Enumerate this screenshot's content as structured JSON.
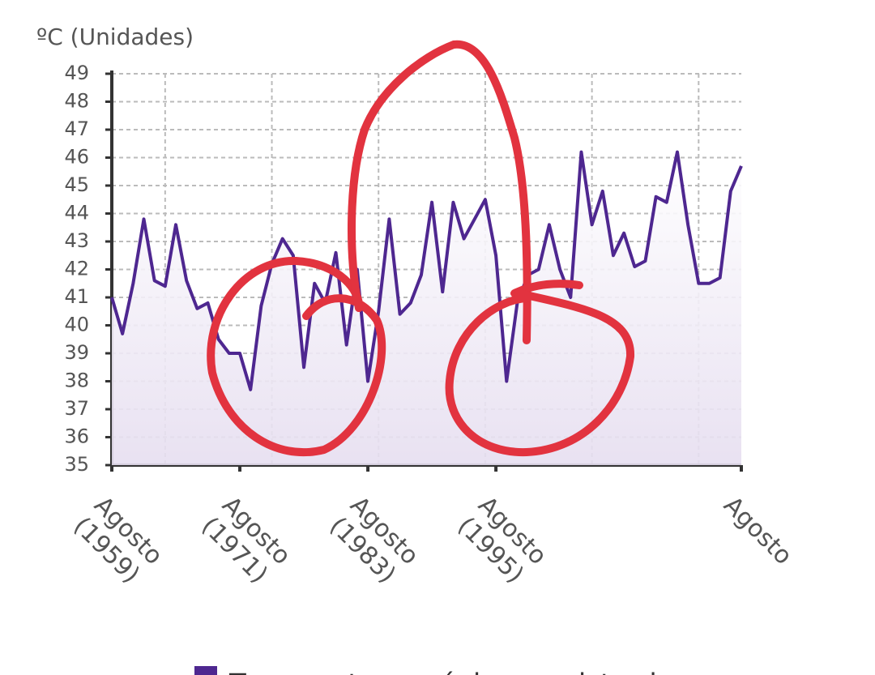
{
  "chart_data": {
    "type": "line",
    "y_label": "ºC (Unidades)",
    "categories": [
      "Agosto\n(1959)",
      null,
      null,
      null,
      null,
      null,
      null,
      null,
      null,
      null,
      null,
      null,
      "Agosto\n(1971)",
      null,
      null,
      null,
      null,
      null,
      null,
      null,
      null,
      null,
      null,
      null,
      "Agosto\n(1983)",
      null,
      null,
      null,
      null,
      null,
      null,
      null,
      null,
      null,
      null,
      null,
      "Agosto\n(1995)",
      null,
      null,
      null,
      null,
      null,
      null,
      null,
      null,
      null,
      null,
      null,
      null,
      null,
      null,
      null,
      null,
      null,
      null,
      null,
      null,
      null,
      null,
      "Agosto"
    ],
    "series": [
      {
        "name": "Temperatura máxima registrada",
        "color": "#4e2790",
        "values": [
          41.0,
          39.7,
          41.5,
          43.8,
          41.6,
          41.4,
          43.6,
          41.6,
          40.6,
          40.8,
          39.5,
          39.0,
          39.0,
          37.7,
          40.7,
          42.2,
          43.1,
          42.5,
          38.5,
          41.5,
          40.8,
          42.6,
          39.3,
          42.0,
          38.0,
          40.5,
          43.8,
          40.4,
          40.8,
          41.8,
          44.4,
          41.2,
          44.4,
          43.1,
          43.8,
          44.5,
          42.5,
          38.0,
          40.8,
          41.8,
          42.0,
          43.6,
          42.0,
          41.0,
          46.2,
          43.6,
          44.8,
          42.5,
          43.3,
          42.1,
          42.3,
          44.6,
          44.4,
          46.2,
          43.6,
          41.5,
          41.5,
          41.7,
          44.8,
          45.7
        ]
      }
    ],
    "ylim": [
      35,
      49
    ],
    "yticks": [
      35,
      36,
      37,
      38,
      39,
      40,
      41,
      42,
      43,
      44,
      45,
      46,
      47,
      48,
      49
    ],
    "grid": true,
    "legend": "bottom"
  }
}
